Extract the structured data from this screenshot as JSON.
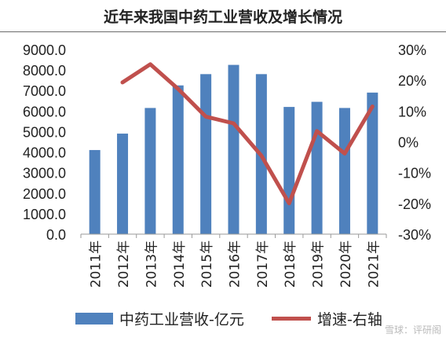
{
  "chart_data": {
    "type": "bar",
    "title": "近年来我国中药工业营收及增长情况",
    "categories": [
      "2011年",
      "2012年",
      "2013年",
      "2014年",
      "2015年",
      "2016年",
      "2017年",
      "2018年",
      "2019年",
      "2020年",
      "2021年"
    ],
    "series": [
      {
        "name": "中药工业营收-亿元",
        "type": "bar",
        "axis": "left",
        "values": [
          4100,
          4900,
          6150,
          7250,
          7800,
          8250,
          7800,
          6200,
          6450,
          6150,
          6900
        ]
      },
      {
        "name": "增速-右轴",
        "type": "line",
        "axis": "right",
        "values": [
          null,
          19.3,
          25.2,
          17.2,
          8.2,
          6.0,
          -4.5,
          -20.0,
          3.5,
          -3.8,
          11.5
        ]
      }
    ],
    "left_axis": {
      "min": 0,
      "max": 9000,
      "step": 1000,
      "ticks": [
        "0.0",
        "1000.0",
        "2000.0",
        "3000.0",
        "4000.0",
        "5000.0",
        "6000.0",
        "7000.0",
        "8000.0",
        "9000.0"
      ]
    },
    "right_axis": {
      "min": -30,
      "max": 30,
      "step": 10,
      "ticks": [
        "-30%",
        "-20%",
        "-10%",
        "0%",
        "10%",
        "20%",
        "30%"
      ]
    },
    "grid": false,
    "legend_position": "bottom",
    "colors": {
      "bar": "#4f81bd",
      "line": "#c0504d"
    }
  },
  "watermark": "雪球：评研阁"
}
